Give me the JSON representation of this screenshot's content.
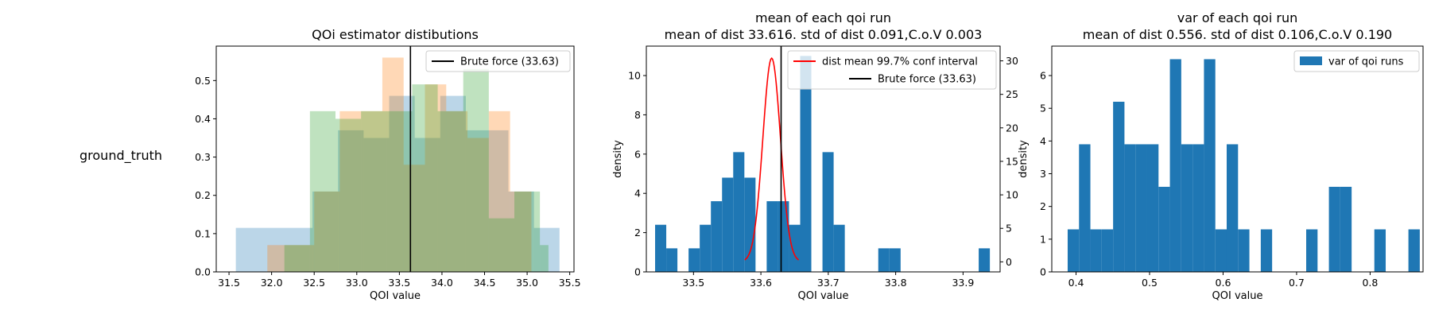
{
  "figure": {
    "row_label": "ground_truth"
  },
  "chart_data": [
    {
      "type": "histogram",
      "title": "QOi estimator distibutions",
      "xlabel": "QOI value",
      "ylabel": "",
      "xlim": [
        31.35,
        35.55
      ],
      "ylim": [
        0,
        0.59
      ],
      "xticks": [
        "31.5",
        "32.0",
        "32.5",
        "33.0",
        "33.5",
        "34.0",
        "34.5",
        "35.0",
        "35.5"
      ],
      "xtick_values": [
        31.5,
        32.0,
        32.5,
        33.0,
        33.5,
        34.0,
        34.5,
        35.0,
        35.5
      ],
      "yticks": [
        "0.0",
        "0.1",
        "0.2",
        "0.3",
        "0.4",
        "0.5"
      ],
      "ytick_values": [
        0,
        0.1,
        0.2,
        0.3,
        0.4,
        0.5
      ],
      "legend": {
        "position": "upper right",
        "entries": [
          "Brute force (33.63)"
        ]
      },
      "vline": {
        "x": 33.63,
        "color": "#000000",
        "label": "Brute force (33.63)"
      },
      "series": [
        {
          "color": "#1f77b4",
          "alpha": 0.3,
          "bins": [
            {
              "x0": 31.58,
              "x1": 32.48,
              "y": 0.115
            },
            {
              "x0": 32.48,
              "x1": 32.78,
              "y": 0.21
            },
            {
              "x0": 32.78,
              "x1": 33.08,
              "y": 0.37
            },
            {
              "x0": 33.08,
              "x1": 33.38,
              "y": 0.35
            },
            {
              "x0": 33.38,
              "x1": 33.68,
              "y": 0.46
            },
            {
              "x0": 33.68,
              "x1": 33.98,
              "y": 0.35
            },
            {
              "x0": 33.98,
              "x1": 34.28,
              "y": 0.46
            },
            {
              "x0": 34.28,
              "x1": 34.78,
              "y": 0.37
            },
            {
              "x0": 34.78,
              "x1": 35.08,
              "y": 0.21
            },
            {
              "x0": 35.08,
              "x1": 35.38,
              "y": 0.115
            }
          ]
        },
        {
          "color": "#ff7f0e",
          "alpha": 0.3,
          "bins": [
            {
              "x0": 31.95,
              "x1": 32.5,
              "y": 0.07
            },
            {
              "x0": 32.5,
              "x1": 32.8,
              "y": 0.21
            },
            {
              "x0": 32.8,
              "x1": 33.05,
              "y": 0.42
            },
            {
              "x0": 33.05,
              "x1": 33.3,
              "y": 0.42
            },
            {
              "x0": 33.3,
              "x1": 33.55,
              "y": 0.56
            },
            {
              "x0": 33.55,
              "x1": 33.8,
              "y": 0.28
            },
            {
              "x0": 33.8,
              "x1": 34.05,
              "y": 0.49
            },
            {
              "x0": 34.05,
              "x1": 34.3,
              "y": 0.42
            },
            {
              "x0": 34.3,
              "x1": 34.55,
              "y": 0.35
            },
            {
              "x0": 34.55,
              "x1": 34.8,
              "y": 0.42
            },
            {
              "x0": 34.8,
              "x1": 35.05,
              "y": 0.21
            }
          ]
        },
        {
          "color": "#2ca02c",
          "alpha": 0.3,
          "bins": [
            {
              "x0": 32.15,
              "x1": 32.45,
              "y": 0.07
            },
            {
              "x0": 32.45,
              "x1": 32.75,
              "y": 0.42
            },
            {
              "x0": 32.75,
              "x1": 33.05,
              "y": 0.4
            },
            {
              "x0": 33.05,
              "x1": 33.35,
              "y": 0.42
            },
            {
              "x0": 33.35,
              "x1": 33.65,
              "y": 0.42
            },
            {
              "x0": 33.65,
              "x1": 33.95,
              "y": 0.49
            },
            {
              "x0": 33.95,
              "x1": 34.25,
              "y": 0.42
            },
            {
              "x0": 34.25,
              "x1": 34.55,
              "y": 0.53
            },
            {
              "x0": 34.55,
              "x1": 34.85,
              "y": 0.14
            },
            {
              "x0": 34.85,
              "x1": 35.15,
              "y": 0.21
            },
            {
              "x0": 35.15,
              "x1": 35.25,
              "y": 0.07
            }
          ]
        }
      ]
    },
    {
      "type": "histogram",
      "title": "mean of each qoi run",
      "subtitle": "mean of dist 33.616. std of dist 0.091,C.o.V 0.003",
      "xlabel": "QOI value",
      "ylabel": "density",
      "xlim": [
        33.43,
        33.955
      ],
      "ylim": [
        0,
        11.5
      ],
      "y2lim": [
        -1.5,
        32.2
      ],
      "xticks": [
        "33.5",
        "33.6",
        "33.7",
        "33.8",
        "33.9"
      ],
      "xtick_values": [
        33.5,
        33.6,
        33.7,
        33.8,
        33.9
      ],
      "yticks": [
        "0",
        "2",
        "4",
        "6",
        "8",
        "10"
      ],
      "ytick_values": [
        0,
        2,
        4,
        6,
        8,
        10
      ],
      "y2ticks": [
        "0",
        "5",
        "10",
        "15",
        "20",
        "25",
        "30"
      ],
      "y2tick_values": [
        0,
        5,
        10,
        15,
        20,
        25,
        30
      ],
      "legend": {
        "position": "upper right",
        "entries": [
          "dist mean 99.7% conf interval",
          "Brute force (33.63)"
        ]
      },
      "vline": {
        "x": 33.63,
        "color": "#000000",
        "label": "Brute force (33.63)"
      },
      "curve": {
        "label": "dist mean 99.7% conf interval",
        "color": "#ff0000",
        "mean": 33.616,
        "sd": 0.0131,
        "peak": 30.4,
        "x_from": 33.576,
        "x_to": 33.656
      },
      "series": [
        {
          "name": "mean of each qoi run",
          "color": "#1f77b4",
          "bin_start": 33.443,
          "bin_width": 0.01656,
          "values": [
            2.4,
            1.2,
            0,
            1.2,
            2.4,
            3.6,
            4.8,
            6.1,
            4.8,
            0,
            3.6,
            3.6,
            2.4,
            11.0,
            0,
            6.1,
            2.4,
            0,
            0,
            0,
            1.2,
            1.2,
            0,
            0,
            0,
            0,
            0,
            0,
            0,
            1.2
          ]
        }
      ]
    },
    {
      "type": "histogram",
      "title": "var of each qoi run",
      "subtitle": "mean of dist 0.556. std of dist 0.106,C.o.V 0.190",
      "xlabel": "QOI value",
      "ylabel": "density",
      "xlim": [
        0.367,
        0.872
      ],
      "ylim": [
        0,
        6.9
      ],
      "xticks": [
        "0.4",
        "0.5",
        "0.6",
        "0.7",
        "0.8"
      ],
      "xtick_values": [
        0.4,
        0.5,
        0.6,
        0.7,
        0.8
      ],
      "yticks": [
        "0",
        "1",
        "2",
        "3",
        "4",
        "5",
        "6"
      ],
      "ytick_values": [
        0,
        1,
        2,
        3,
        4,
        5,
        6
      ],
      "legend": {
        "position": "upper right",
        "entries": [
          "var of qoi runs"
        ]
      },
      "series": [
        {
          "name": "var of qoi runs",
          "color": "#1f77b4",
          "bin_start": 0.3886,
          "bin_width": 0.01545,
          "values": [
            1.3,
            3.9,
            1.3,
            1.3,
            5.2,
            3.9,
            3.9,
            3.9,
            2.6,
            6.5,
            3.9,
            3.9,
            6.5,
            1.3,
            3.9,
            1.3,
            0,
            1.3,
            0,
            0,
            0,
            1.3,
            0,
            2.6,
            2.6,
            0,
            0,
            1.3,
            0,
            0,
            1.3
          ]
        }
      ]
    }
  ]
}
